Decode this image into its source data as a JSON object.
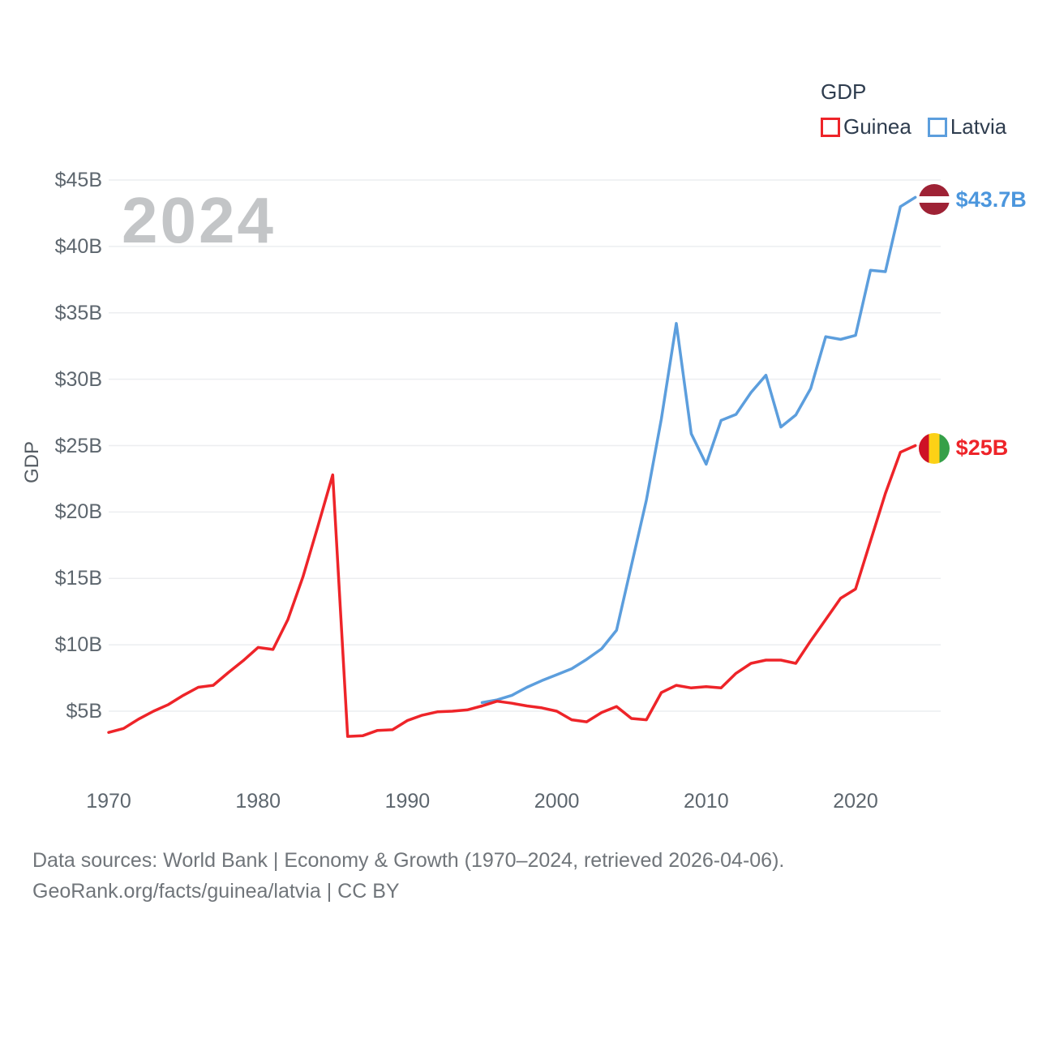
{
  "legend": {
    "title": "GDP",
    "items": [
      {
        "label": "Guinea",
        "color": "#ee2429"
      },
      {
        "label": "Latvia",
        "color": "#5c9edd"
      }
    ]
  },
  "watermark": "2024",
  "chart_data": {
    "type": "line",
    "title": "GDP",
    "ylabel": "GDP",
    "xlabel": "",
    "grid": "horizontal",
    "legend_position": "top-right",
    "xlim": [
      1970,
      2024
    ],
    "ylim": [
      0,
      47
    ],
    "x_ticks": [
      1970,
      1980,
      1990,
      2000,
      2010,
      2020
    ],
    "y_ticks": [
      {
        "label": "$5B",
        "value": 5
      },
      {
        "label": "$10B",
        "value": 10
      },
      {
        "label": "$15B",
        "value": 15
      },
      {
        "label": "$20B",
        "value": 20
      },
      {
        "label": "$25B",
        "value": 25
      },
      {
        "label": "$30B",
        "value": 30
      },
      {
        "label": "$35B",
        "value": 35
      },
      {
        "label": "$40B",
        "value": 40
      },
      {
        "label": "$45B",
        "value": 45
      }
    ],
    "series": [
      {
        "name": "Latvia",
        "color": "#5c9edd",
        "start_year": 1995,
        "values": [
          5.65,
          5.85,
          6.2,
          6.8,
          7.3,
          7.75,
          8.2,
          8.9,
          9.7,
          11.1,
          16.0,
          20.9,
          27.0,
          34.2,
          25.9,
          23.6,
          26.9,
          27.35,
          29.0,
          30.3,
          26.4,
          27.3,
          29.3,
          33.2,
          33.0,
          33.3,
          38.2,
          38.1,
          43.0,
          43.7
        ]
      },
      {
        "name": "Guinea",
        "color": "#ee2429",
        "start_year": 1970,
        "values": [
          3.4,
          3.7,
          4.4,
          5.0,
          5.5,
          6.2,
          6.8,
          6.95,
          7.9,
          8.8,
          9.8,
          9.65,
          11.9,
          15.1,
          18.9,
          22.8,
          3.1,
          3.15,
          3.55,
          3.6,
          4.3,
          4.7,
          4.95,
          5.0,
          5.1,
          5.4,
          5.75,
          5.6,
          5.4,
          5.25,
          5.0,
          4.35,
          4.2,
          4.9,
          5.35,
          4.45,
          4.35,
          6.4,
          6.95,
          6.75,
          6.85,
          6.75,
          7.85,
          8.6,
          8.85,
          8.85,
          8.6,
          10.3,
          11.9,
          13.5,
          14.2,
          17.8,
          21.4,
          24.5,
          25.0
        ]
      }
    ],
    "end_labels": [
      {
        "series": "Latvia",
        "text": "$43.7B",
        "color": "#4b96dd",
        "flag": "latvia"
      },
      {
        "series": "Guinea",
        "text": "$25B",
        "color": "#ee2429",
        "flag": "guinea"
      }
    ]
  },
  "flags": {
    "latvia": {
      "orientation": "horizontal",
      "colors": [
        "#9E2235",
        "#FFFFFF",
        "#9E2235"
      ],
      "stripes": [
        0.4,
        0.2,
        0.4
      ]
    },
    "guinea": {
      "orientation": "vertical",
      "colors": [
        "#CE1126",
        "#FCD116",
        "#35A048"
      ],
      "stripes": [
        0.3334,
        0.3333,
        0.3333
      ]
    }
  },
  "footer": {
    "line1": "Data sources: World Bank | Economy & Growth (1970–2024, retrieved 2026-04-06).",
    "line2": "GeoRank.org/facts/guinea/latvia | CC BY"
  }
}
